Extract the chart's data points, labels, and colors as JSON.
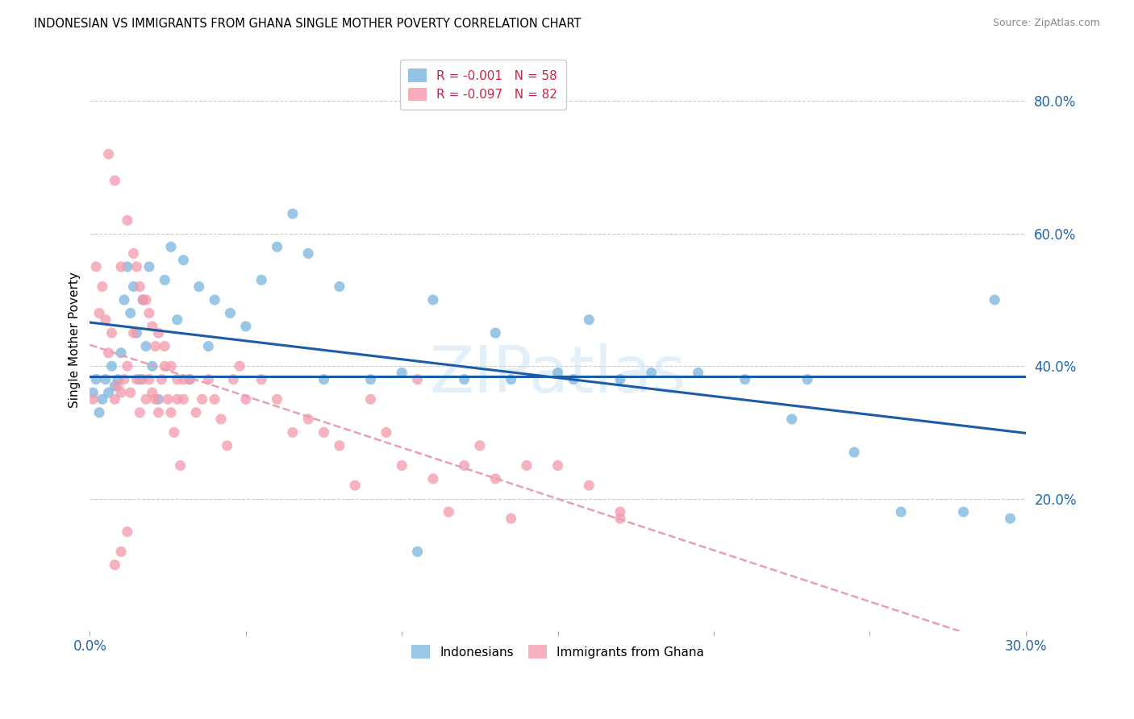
{
  "title": "INDONESIAN VS IMMIGRANTS FROM GHANA SINGLE MOTHER POVERTY CORRELATION CHART",
  "source": "Source: ZipAtlas.com",
  "ylabel": "Single Mother Poverty",
  "yticks": [
    0.0,
    0.2,
    0.4,
    0.6,
    0.8
  ],
  "ytick_labels": [
    "",
    "20.0%",
    "40.0%",
    "60.0%",
    "80.0%"
  ],
  "xlim": [
    0.0,
    0.3
  ],
  "ylim": [
    0.0,
    0.88
  ],
  "legend_line1": "R = -0.001   N = 58",
  "legend_line2": "R = -0.097   N = 82",
  "indonesian_color": "#7ab5de",
  "ghana_color": "#f599aa",
  "trendline_indo_color": "#1a5ca8",
  "trendline_ghana_color": "#e8a0b0",
  "mean_line_color": "#1a5ca8",
  "mean_line_y": 0.385,
  "watermark_text": "ZIPatlas",
  "indo_x": [
    0.001,
    0.002,
    0.003,
    0.004,
    0.005,
    0.006,
    0.007,
    0.008,
    0.009,
    0.01,
    0.011,
    0.012,
    0.013,
    0.014,
    0.015,
    0.016,
    0.017,
    0.018,
    0.019,
    0.02,
    0.022,
    0.024,
    0.026,
    0.028,
    0.03,
    0.032,
    0.035,
    0.038,
    0.04,
    0.045,
    0.05,
    0.055,
    0.06,
    0.065,
    0.07,
    0.075,
    0.08,
    0.09,
    0.1,
    0.11,
    0.12,
    0.13,
    0.15,
    0.16,
    0.17,
    0.18,
    0.195,
    0.21,
    0.225,
    0.245,
    0.26,
    0.28,
    0.29,
    0.295,
    0.135,
    0.155,
    0.23,
    0.105
  ],
  "indo_y": [
    0.36,
    0.38,
    0.33,
    0.35,
    0.38,
    0.36,
    0.4,
    0.37,
    0.38,
    0.42,
    0.5,
    0.55,
    0.48,
    0.52,
    0.45,
    0.38,
    0.5,
    0.43,
    0.55,
    0.4,
    0.35,
    0.53,
    0.58,
    0.47,
    0.56,
    0.38,
    0.52,
    0.43,
    0.5,
    0.48,
    0.46,
    0.53,
    0.58,
    0.63,
    0.57,
    0.38,
    0.52,
    0.38,
    0.39,
    0.5,
    0.38,
    0.45,
    0.39,
    0.47,
    0.38,
    0.39,
    0.39,
    0.38,
    0.32,
    0.27,
    0.18,
    0.18,
    0.5,
    0.17,
    0.38,
    0.38,
    0.38,
    0.12
  ],
  "ghana_x": [
    0.001,
    0.002,
    0.003,
    0.004,
    0.005,
    0.006,
    0.007,
    0.008,
    0.009,
    0.01,
    0.011,
    0.012,
    0.013,
    0.014,
    0.015,
    0.016,
    0.017,
    0.018,
    0.019,
    0.02,
    0.021,
    0.022,
    0.023,
    0.024,
    0.025,
    0.026,
    0.027,
    0.028,
    0.029,
    0.03,
    0.032,
    0.034,
    0.036,
    0.038,
    0.04,
    0.042,
    0.044,
    0.046,
    0.048,
    0.05,
    0.055,
    0.06,
    0.065,
    0.07,
    0.075,
    0.08,
    0.085,
    0.09,
    0.095,
    0.1,
    0.105,
    0.11,
    0.115,
    0.12,
    0.125,
    0.13,
    0.135,
    0.14,
    0.15,
    0.16,
    0.17,
    0.006,
    0.008,
    0.01,
    0.012,
    0.014,
    0.016,
    0.018,
    0.02,
    0.022,
    0.024,
    0.026,
    0.028,
    0.03,
    0.015,
    0.017,
    0.019,
    0.021,
    0.008,
    0.01,
    0.012,
    0.17
  ],
  "ghana_y": [
    0.35,
    0.55,
    0.48,
    0.52,
    0.47,
    0.42,
    0.45,
    0.35,
    0.37,
    0.36,
    0.38,
    0.4,
    0.36,
    0.45,
    0.38,
    0.33,
    0.38,
    0.35,
    0.38,
    0.36,
    0.35,
    0.33,
    0.38,
    0.4,
    0.35,
    0.33,
    0.3,
    0.35,
    0.25,
    0.38,
    0.38,
    0.33,
    0.35,
    0.38,
    0.35,
    0.32,
    0.28,
    0.38,
    0.4,
    0.35,
    0.38,
    0.35,
    0.3,
    0.32,
    0.3,
    0.28,
    0.22,
    0.35,
    0.3,
    0.25,
    0.38,
    0.23,
    0.18,
    0.25,
    0.28,
    0.23,
    0.17,
    0.25,
    0.25,
    0.22,
    0.18,
    0.72,
    0.68,
    0.55,
    0.62,
    0.57,
    0.52,
    0.5,
    0.46,
    0.45,
    0.43,
    0.4,
    0.38,
    0.35,
    0.55,
    0.5,
    0.48,
    0.43,
    0.1,
    0.12,
    0.15,
    0.17
  ]
}
